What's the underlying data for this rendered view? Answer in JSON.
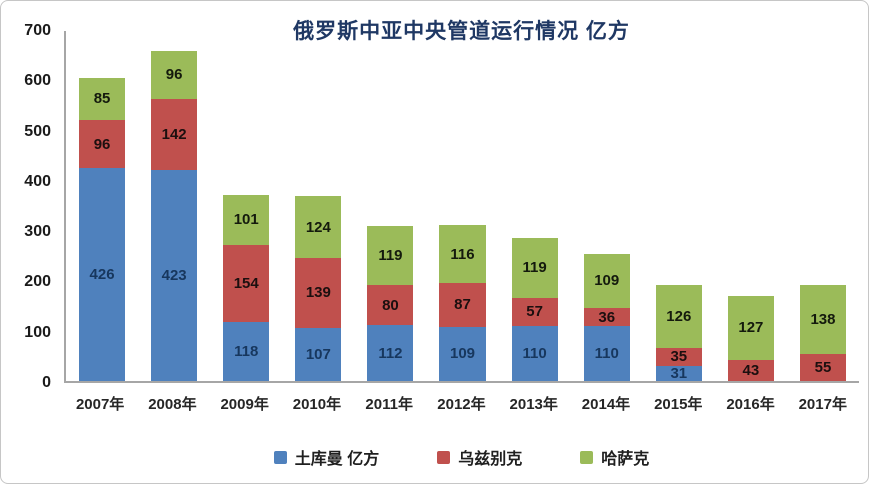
{
  "card": {
    "background": "#ffffff",
    "border_color": "#c6c6c6"
  },
  "chart_data": {
    "type": "bar",
    "stacked": true,
    "title": "俄罗斯中亚中央管道运行情况  亿方",
    "title_color": "#1F3864",
    "categories": [
      "2007年",
      "2008年",
      "2009年",
      "2010年",
      "2011年",
      "2012年",
      "2013年",
      "2014年",
      "2015年",
      "2016年",
      "2017年"
    ],
    "series": [
      {
        "name": "土库曼  亿方",
        "color": "#4F81BD",
        "label_color": "#17375E",
        "values": [
          426,
          423,
          118,
          107,
          112,
          109,
          110,
          110,
          31,
          0,
          0
        ]
      },
      {
        "name": "乌兹别克",
        "color": "#C0504D",
        "label_color": "#1c0f0f",
        "values": [
          96,
          142,
          154,
          139,
          80,
          87,
          57,
          36,
          35,
          43,
          55
        ]
      },
      {
        "name": "哈萨克",
        "color": "#9BBB59",
        "label_color": "#141a0d",
        "values": [
          85,
          96,
          101,
          124,
          119,
          116,
          119,
          109,
          126,
          127,
          138
        ]
      }
    ],
    "ylim": [
      0,
      700
    ],
    "y_ticks": [
      0,
      100,
      200,
      300,
      400,
      500,
      600,
      700
    ],
    "grid": false,
    "legend_position": "bottom",
    "axis_color": "#A6A6A6"
  }
}
